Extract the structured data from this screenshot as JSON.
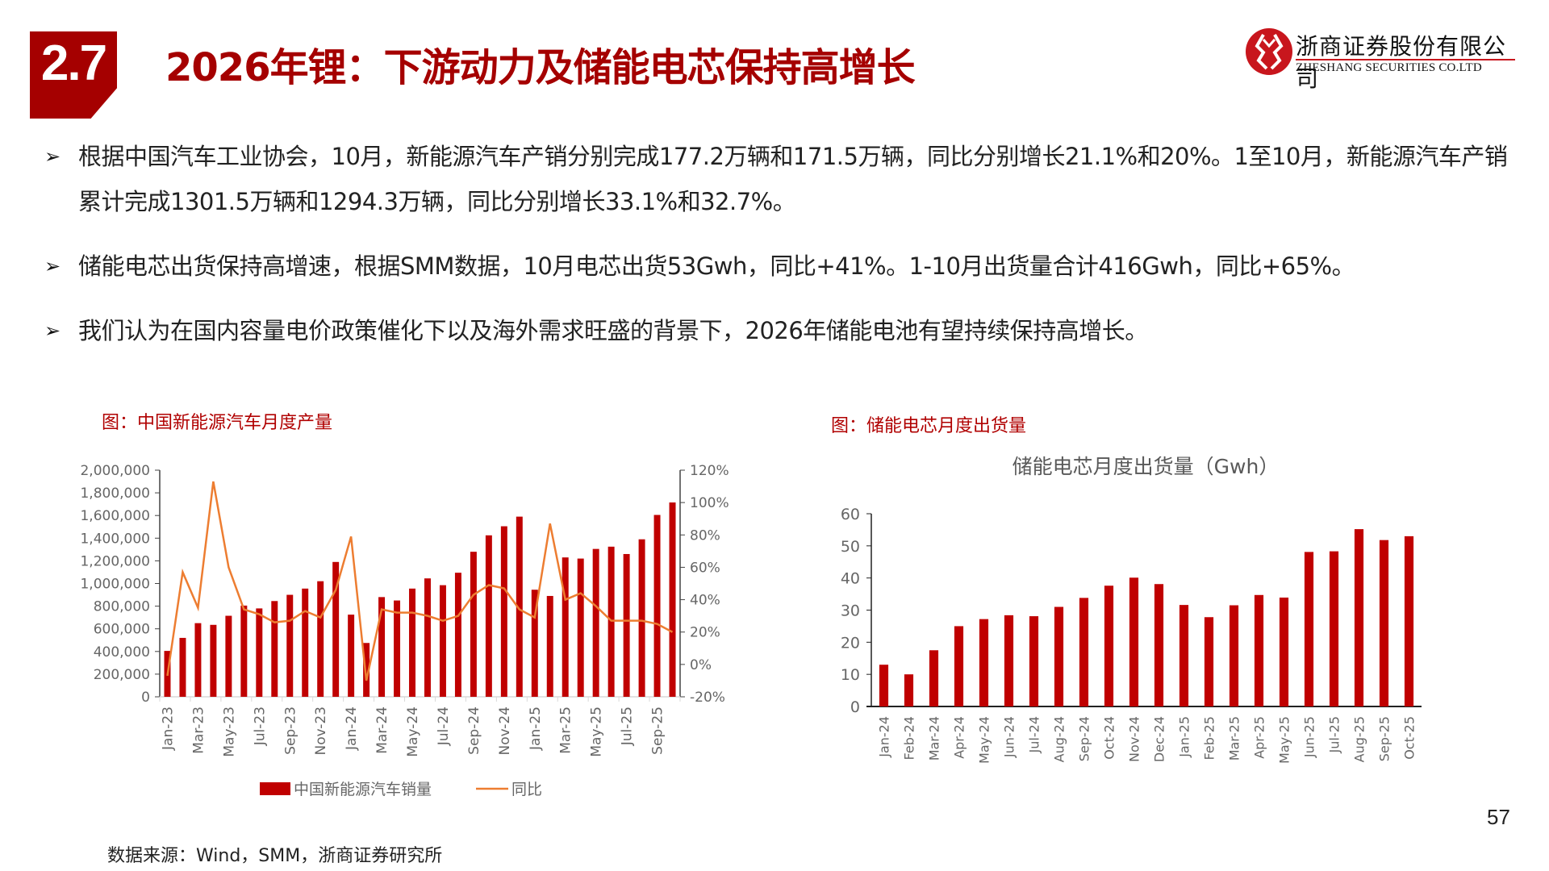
{
  "header": {
    "section_number": "2.7",
    "title": "2026年锂：下游动力及储能电芯保持高增长",
    "logo": {
      "name_cn": "浙商证券股份有限公司",
      "name_en": "ZHESHANG SECURITIES CO.LTD",
      "icon": "zheshang-logo-icon"
    }
  },
  "bullets": [
    "根据中国汽车工业协会，10月，新能源汽车产销分别完成177.2万辆和171.5万辆，同比分别增长21.1%和20%。1至10月，新能源汽车产销累计完成1301.5万辆和1294.3万辆，同比分别增长33.1%和32.7%。",
    "储能电芯出货保持高增速，根据SMM数据，10月电芯出货53Gwh，同比+41%。1-10月出货量合计416Gwh，同比+65%。",
    "我们认为在国内容量电价政策催化下以及海外需求旺盛的背景下，2026年储能电池有望持续保持高增长。"
  ],
  "colors": {
    "brand_red": "#a50000",
    "bar_red": "#c00000",
    "line_orange": "#ed7d31",
    "axis_text": "#666666"
  },
  "figures": {
    "left_caption": "图：中国新能源汽车月度产量",
    "right_caption": "图：储能电芯月度出货量"
  },
  "footer": {
    "source": "数据来源：Wind，SMM，浙商证券研究所",
    "page_number": "57"
  },
  "chart_data": [
    {
      "type": "bar+line",
      "title": "",
      "categories": [
        "Jan-23",
        "Feb-23",
        "Mar-23",
        "Apr-23",
        "May-23",
        "Jun-23",
        "Jul-23",
        "Aug-23",
        "Sep-23",
        "Oct-23",
        "Nov-23",
        "Dec-23",
        "Jan-24",
        "Feb-24",
        "Mar-24",
        "Apr-24",
        "May-24",
        "Jun-24",
        "Jul-24",
        "Aug-24",
        "Sep-24",
        "Oct-24",
        "Nov-24",
        "Dec-24",
        "Jan-25",
        "Feb-25",
        "Mar-25",
        "Apr-25",
        "May-25",
        "Jun-25",
        "Jul-25",
        "Aug-25",
        "Sep-25",
        "Oct-25"
      ],
      "tick_labels": [
        "Jan-23",
        "Mar-23",
        "May-23",
        "Jul-23",
        "Sep-23",
        "Nov-23",
        "Jan-24",
        "Mar-24",
        "May-24",
        "Jul-24",
        "Sep-24",
        "Nov-24",
        "Jan-25",
        "Mar-25",
        "May-25",
        "Jul-25",
        "Sep-25"
      ],
      "series": [
        {
          "name": "中国新能源汽车销量",
          "type": "bar",
          "axis": "left",
          "values": [
            405000,
            520000,
            650000,
            635000,
            715000,
            805000,
            780000,
            845000,
            900000,
            955000,
            1020000,
            1190000,
            725000,
            475000,
            880000,
            850000,
            955000,
            1045000,
            985000,
            1095000,
            1280000,
            1425000,
            1505000,
            1590000,
            945000,
            890000,
            1230000,
            1220000,
            1305000,
            1325000,
            1260000,
            1390000,
            1605000,
            1715000
          ]
        },
        {
          "name": "同比",
          "type": "line",
          "axis": "right",
          "values": [
            -7,
            57,
            35,
            113,
            60,
            34,
            31,
            26,
            27,
            33,
            29,
            46,
            79,
            -10,
            34,
            32,
            32,
            30,
            27,
            30,
            43,
            49,
            47,
            34,
            29,
            87,
            40,
            44,
            36,
            27,
            27,
            27,
            25,
            20
          ]
        }
      ],
      "left_axis": {
        "ticks": [
          "2,000,000",
          "1,800,000",
          "1,600,000",
          "1,400,000",
          "1,200,000",
          "1,000,000",
          "800,000",
          "600,000",
          "400,000",
          "200,000",
          "0"
        ],
        "ylim": [
          0,
          2000000
        ]
      },
      "right_axis": {
        "ticks": [
          "120%",
          "100%",
          "80%",
          "60%",
          "40%",
          "20%",
          "0%",
          "-20%"
        ],
        "ylim": [
          -20,
          120
        ]
      },
      "legend": [
        "中国新能源汽车销量",
        "同比"
      ],
      "legend_position": "bottom",
      "grid": false
    },
    {
      "type": "bar",
      "title": "储能电芯月度出货量（Gwh）",
      "categories": [
        "Jan-24",
        "Feb-24",
        "Mar-24",
        "Apr-24",
        "May-24",
        "Jun-24",
        "Jul-24",
        "Aug-24",
        "Sep-24",
        "Oct-24",
        "Nov-24",
        "Dec-24",
        "Jan-25",
        "Feb-25",
        "Mar-25",
        "Apr-25",
        "May-25",
        "Jun-25",
        "Jul-25",
        "Aug-25",
        "Sep-25",
        "Oct-25"
      ],
      "values": [
        13.0,
        10.0,
        17.5,
        25.0,
        27.2,
        28.4,
        28.1,
        31.0,
        33.8,
        37.6,
        40.1,
        38.1,
        31.6,
        27.8,
        31.5,
        34.7,
        33.9,
        48.1,
        48.3,
        55.2,
        51.8,
        53.0
      ],
      "y_ticks": [
        "60",
        "50",
        "40",
        "30",
        "20",
        "10",
        "0"
      ],
      "ylim": [
        0,
        60
      ],
      "xlabel": "",
      "ylabel": "",
      "grid": false
    }
  ]
}
